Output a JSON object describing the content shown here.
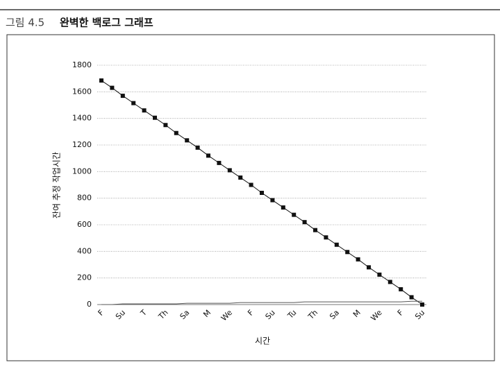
{
  "chart_data": {
    "type": "line",
    "figure_label": "그림 4.5",
    "title": "완벽한 백로그 그래프",
    "y_label": "잔여 추정 작업시간",
    "x_label": "시간",
    "categories": [
      "F",
      null,
      "Su",
      null,
      "T",
      null,
      "Th",
      null,
      "Sa",
      null,
      "M",
      null,
      "We",
      null,
      "F",
      null,
      "Su",
      null,
      "Tu",
      null,
      "Th",
      null,
      "Sa",
      null,
      "M",
      null,
      "We",
      null,
      "F",
      null,
      "Su"
    ],
    "series": [
      {
        "color": "#111111",
        "markers": true,
        "values": [
          1685,
          1630,
          1570,
          1515,
          1460,
          1405,
          1350,
          1290,
          1235,
          1180,
          1120,
          1065,
          1010,
          955,
          900,
          840,
          785,
          730,
          675,
          620,
          560,
          505,
          450,
          395,
          340,
          280,
          225,
          170,
          115,
          55,
          0
        ]
      },
      {
        "color": "#555555",
        "markers": false,
        "values": [
          0,
          0,
          5,
          5,
          5,
          5,
          5,
          5,
          10,
          10,
          10,
          10,
          10,
          15,
          15,
          15,
          15,
          15,
          15,
          20,
          20,
          20,
          20,
          20,
          20,
          20,
          20,
          20,
          20,
          25,
          25
        ]
      }
    ],
    "ylim": [
      0,
      1800
    ],
    "yticks": [
      0,
      200,
      400,
      600,
      800,
      1000,
      1200,
      1400,
      1600,
      1800
    ],
    "grid": true
  }
}
